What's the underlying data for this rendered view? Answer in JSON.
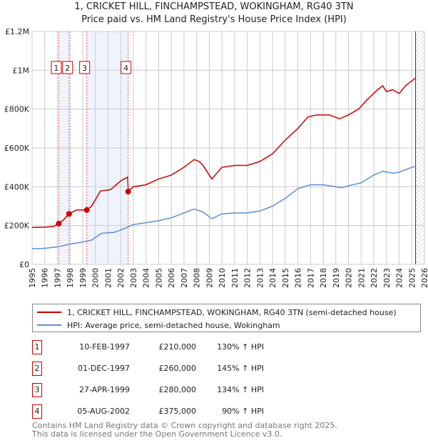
{
  "chart_data": {
    "type": "line",
    "title": "1, CRICKET HILL, FINCHAMPSTEAD, WOKINGHAM, RG40 3TN",
    "subtitle": "Price paid vs. HM Land Registry's House Price Index (HPI)",
    "xlim": [
      1995,
      2026
    ],
    "ylim": [
      0,
      1200000
    ],
    "x_ticks": [
      "1995",
      "1996",
      "1997",
      "1998",
      "1999",
      "2000",
      "2001",
      "2002",
      "2003",
      "2004",
      "2005",
      "2006",
      "2007",
      "2008",
      "2009",
      "2010",
      "2011",
      "2012",
      "2013",
      "2014",
      "2015",
      "2016",
      "2017",
      "2018",
      "2019",
      "2020",
      "2021",
      "2022",
      "2023",
      "2024",
      "2025",
      "2026"
    ],
    "y_ticks": [
      {
        "v": 0,
        "label": "£0"
      },
      {
        "v": 200000,
        "label": "£200K"
      },
      {
        "v": 400000,
        "label": "£400K"
      },
      {
        "v": 600000,
        "label": "£600K"
      },
      {
        "v": 800000,
        "label": "£800K"
      },
      {
        "v": 1000000,
        "label": "£1M"
      },
      {
        "v": 1200000,
        "label": "£1.2M"
      }
    ],
    "grid": true,
    "series": [
      {
        "name": "1, CRICKET HILL, FINCHAMPSTEAD, WOKINGHAM, RG40 3TN (semi-detached house)",
        "color": "#cc0000",
        "x": [
          1995,
          1996,
          1996.7,
          1997.1,
          1997.5,
          1997.9,
          1998.5,
          1999.3,
          1999.7,
          2000.4,
          2001.2,
          2002.0,
          2002.55,
          2002.6,
          2003,
          2004,
          2005,
          2006,
          2007,
          2007.8,
          2008.2,
          2008.5,
          2009.2,
          2010,
          2011,
          2012,
          2013,
          2014,
          2015,
          2016,
          2016.8,
          2017.5,
          2018.5,
          2019.3,
          2020,
          2020.8,
          2021.5,
          2022.3,
          2022.7,
          2023,
          2023.5,
          2024,
          2024.5,
          2025.3
        ],
        "y": [
          190000,
          192000,
          195000,
          210000,
          230000,
          260000,
          280000,
          280000,
          300000,
          378000,
          385000,
          430000,
          450000,
          375000,
          400000,
          410000,
          440000,
          460000,
          500000,
          540000,
          530000,
          510000,
          440000,
          500000,
          510000,
          510000,
          530000,
          570000,
          640000,
          700000,
          760000,
          770000,
          770000,
          750000,
          770000,
          800000,
          850000,
          900000,
          920000,
          890000,
          900000,
          880000,
          920000,
          960000
        ]
      },
      {
        "name": "HPI: Average price, semi-detached house, Wokingham",
        "color": "#5b8fd6",
        "x": [
          1995,
          1996,
          1997,
          1998,
          1999,
          1999.7,
          2000.5,
          2001.5,
          2002.5,
          2003,
          2004,
          2005,
          2006,
          2007,
          2007.8,
          2008.5,
          2009.2,
          2010,
          2011,
          2012,
          2013,
          2014,
          2015,
          2016,
          2017,
          2018,
          2019,
          2019.5,
          2020,
          2021,
          2022,
          2022.7,
          2023.5,
          2024,
          2025,
          2025.3
        ],
        "y": [
          80000,
          83000,
          90000,
          105000,
          115000,
          125000,
          160000,
          165000,
          190000,
          205000,
          215000,
          225000,
          240000,
          265000,
          285000,
          270000,
          235000,
          260000,
          265000,
          265000,
          275000,
          300000,
          340000,
          390000,
          410000,
          410000,
          400000,
          395000,
          405000,
          420000,
          460000,
          480000,
          470000,
          475000,
          500000,
          505000
        ]
      }
    ],
    "sales": [
      {
        "n": "1",
        "x": 1997.11,
        "y": 210000,
        "date": "10-FEB-1997",
        "price": "£210,000",
        "hpi": "130% ↑ HPI"
      },
      {
        "n": "2",
        "x": 1997.92,
        "y": 260000,
        "date": "01-DEC-1997",
        "price": "£260,000",
        "hpi": "145% ↑ HPI"
      },
      {
        "n": "3",
        "x": 1999.32,
        "y": 280000,
        "date": "27-APR-1999",
        "price": "£280,000",
        "hpi": "134% ↑ HPI"
      },
      {
        "n": "4",
        "x": 2002.59,
        "y": 375000,
        "date": "05-AUG-2002",
        "price": "£375,000",
        "hpi": "90% ↑ HPI"
      }
    ],
    "shaded": [
      [
        1997.11,
        1997.92
      ],
      [
        1999.32,
        2002.59
      ]
    ],
    "hatched_from": 2025.3
  },
  "footer": {
    "line1": "Contains HM Land Registry data © Crown copyright and database right 2025.",
    "line2": "This data is licensed under the Open Government Licence v3.0."
  }
}
